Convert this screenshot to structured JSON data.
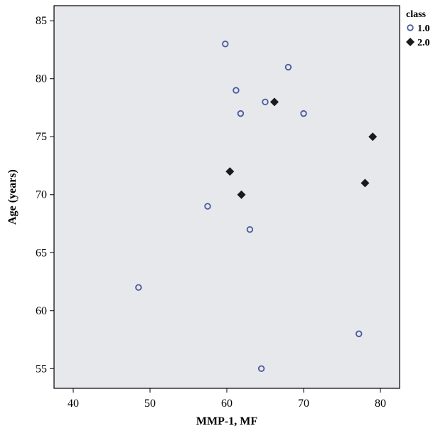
{
  "chart_data": {
    "type": "scatter",
    "xlabel": "MMP-1, MF",
    "ylabel": "Age (years)",
    "xlim": [
      37.5,
      82.5
    ],
    "ylim": [
      53.3,
      86.3
    ],
    "xticks": [
      40,
      50,
      60,
      70,
      80
    ],
    "yticks": [
      55,
      60,
      65,
      70,
      75,
      80,
      85
    ],
    "grid": false,
    "legend": {
      "title": "class",
      "position": "top-right, outside plot"
    },
    "colors": {
      "plot_background": "#e6e8ec",
      "series_1": "#4a5a9c",
      "series_2": "#1a1a1a"
    },
    "series": [
      {
        "name": "1.0",
        "marker": "open-circle",
        "points": [
          {
            "x": 59.8,
            "y": 83
          },
          {
            "x": 68.0,
            "y": 81
          },
          {
            "x": 61.2,
            "y": 79
          },
          {
            "x": 65.0,
            "y": 78
          },
          {
            "x": 61.8,
            "y": 77
          },
          {
            "x": 70.0,
            "y": 77
          },
          {
            "x": 57.5,
            "y": 69
          },
          {
            "x": 63.0,
            "y": 67
          },
          {
            "x": 48.5,
            "y": 62
          },
          {
            "x": 77.2,
            "y": 58
          },
          {
            "x": 64.5,
            "y": 55
          }
        ]
      },
      {
        "name": "2.0",
        "marker": "filled-diamond",
        "points": [
          {
            "x": 66.2,
            "y": 78
          },
          {
            "x": 79.0,
            "y": 75
          },
          {
            "x": 60.4,
            "y": 72
          },
          {
            "x": 78.0,
            "y": 71
          },
          {
            "x": 61.9,
            "y": 70
          }
        ]
      }
    ]
  }
}
